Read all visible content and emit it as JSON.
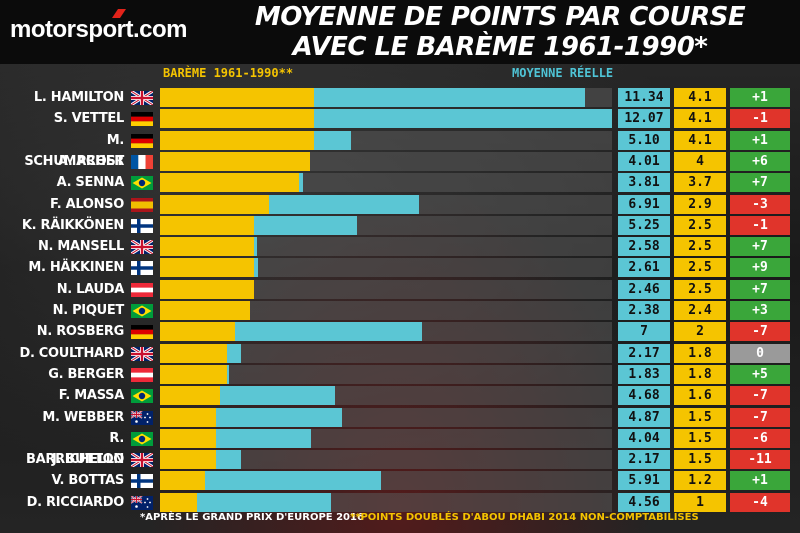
{
  "brand": {
    "logo_text": "motorsport.com"
  },
  "title_line1": "Moyenne de points par course",
  "title_line2": "avec le barème 1961-1990*",
  "legend": {
    "bareme": "BARÈME 1961-1990**",
    "reelle": "MOYENNE RÉELLE"
  },
  "footnotes": {
    "note1": "*APRÈS LE GRAND PRIX D'EUROPE 2016",
    "note2": "**POINTS DOUBLÉS D'ABOU DHABI 2014 NON-COMPTABILISÉS"
  },
  "colors": {
    "bareme": "#f5c400",
    "reelle": "#5bc6d4",
    "positive": "#3aa63a",
    "negative": "#e0342b",
    "neutral": "#9a9a9a"
  },
  "chart_data": {
    "type": "bar",
    "orientation": "horizontal",
    "max_value": 12.07,
    "categories": [
      "L. HAMILTON",
      "S. VETTEL",
      "M. SCHUMACHER",
      "A. PROST",
      "A. SENNA",
      "F. ALONSO",
      "K. RÄIKKÖNEN",
      "N. MANSELL",
      "M. HÄKKINEN",
      "N. LAUDA",
      "N. PIQUET",
      "N. ROSBERG",
      "D. COULTHARD",
      "G. BERGER",
      "F. MASSA",
      "M. WEBBER",
      "R. BARRICHELLO",
      "J. BUTTON",
      "V. BOTTAS",
      "D. RICCIARDO"
    ],
    "flags": [
      "gb",
      "de",
      "de",
      "fr",
      "br",
      "es",
      "fi",
      "gb",
      "fi",
      "at",
      "br",
      "de",
      "gb",
      "at",
      "br",
      "au",
      "br",
      "gb",
      "fi",
      "au"
    ],
    "series": [
      {
        "name": "MOYENNE RÉELLE",
        "values": [
          11.34,
          12.07,
          5.1,
          4.01,
          3.81,
          6.91,
          5.25,
          2.58,
          2.61,
          2.46,
          2.38,
          7,
          2.17,
          1.83,
          4.68,
          4.87,
          4.04,
          2.17,
          5.91,
          4.56
        ]
      },
      {
        "name": "BARÈME 1961-1990**",
        "values": [
          4.1,
          4.1,
          4.1,
          4,
          3.7,
          2.9,
          2.5,
          2.5,
          2.5,
          2.5,
          2.4,
          2,
          1.8,
          1.8,
          1.6,
          1.5,
          1.5,
          1.5,
          1.2,
          1
        ]
      }
    ],
    "labels_reelle": [
      "11.34",
      "12.07",
      "5.10",
      "4.01",
      "3.81",
      "6.91",
      "5.25",
      "2.58",
      "2.61",
      "2.46",
      "2.38",
      "7",
      "2.17",
      "1.83",
      "4.68",
      "4.87",
      "4.04",
      "2.17",
      "5.91",
      "4.56"
    ],
    "labels_bareme": [
      "4.1",
      "4.1",
      "4.1",
      "4",
      "3.7",
      "2.9",
      "2.5",
      "2.5",
      "2.5",
      "2.5",
      "2.4",
      "2",
      "1.8",
      "1.8",
      "1.6",
      "1.5",
      "1.5",
      "1.5",
      "1.2",
      "1"
    ],
    "rank_change": [
      "+1",
      "-1",
      "+1",
      "+6",
      "+7",
      "-3",
      "-1",
      "+7",
      "+9",
      "+7",
      "+3",
      "-7",
      "0",
      "+5",
      "-7",
      "-7",
      "-6",
      "-11",
      "+1",
      "-4"
    ]
  }
}
